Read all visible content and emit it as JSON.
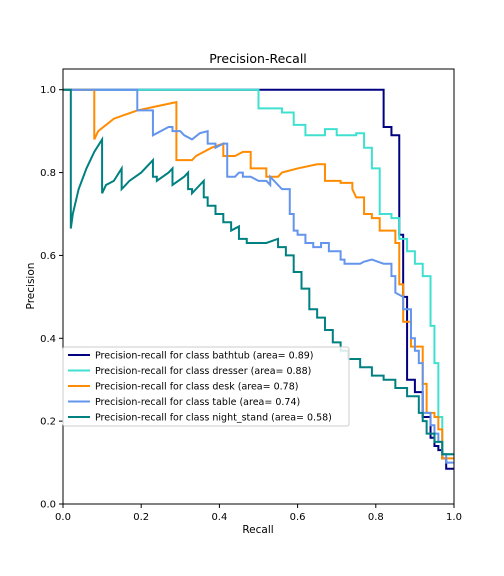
{
  "chart_data": {
    "type": "line",
    "title": "Precision-Recall",
    "xlabel": "Recall",
    "ylabel": "Precision",
    "xlim": [
      0,
      1
    ],
    "ylim": [
      0,
      1.05
    ],
    "xticks": [
      "0.0",
      "0.2",
      "0.4",
      "0.6",
      "0.8",
      "1.0"
    ],
    "yticks": [
      "0.0",
      "0.2",
      "0.4",
      "0.6",
      "0.8",
      "1.0"
    ],
    "grid": false,
    "legend": {
      "placement": "center-left"
    },
    "series": [
      {
        "name": "Precision-recall for class bathtub (area= 0.89)",
        "color": "#000080",
        "points": [
          [
            0.0,
            1.0
          ],
          [
            0.82,
            1.0
          ],
          [
            0.82,
            0.91
          ],
          [
            0.84,
            0.91
          ],
          [
            0.84,
            0.89
          ],
          [
            0.86,
            0.89
          ],
          [
            0.86,
            0.65
          ],
          [
            0.87,
            0.65
          ],
          [
            0.87,
            0.5
          ],
          [
            0.88,
            0.5
          ],
          [
            0.88,
            0.3
          ],
          [
            0.9,
            0.3
          ],
          [
            0.9,
            0.27
          ],
          [
            0.92,
            0.27
          ],
          [
            0.92,
            0.21
          ],
          [
            0.94,
            0.21
          ],
          [
            0.94,
            0.16
          ],
          [
            0.95,
            0.16
          ],
          [
            0.95,
            0.14
          ],
          [
            0.96,
            0.14
          ],
          [
            0.96,
            0.13
          ],
          [
            0.97,
            0.13
          ],
          [
            0.97,
            0.11
          ],
          [
            0.98,
            0.11
          ],
          [
            0.98,
            0.085
          ],
          [
            1.0,
            0.085
          ]
        ]
      },
      {
        "name": "Precision-recall for class dresser (area= 0.88)",
        "color": "#40e0d0",
        "points": [
          [
            0.0,
            1.0
          ],
          [
            0.5,
            1.0
          ],
          [
            0.5,
            0.955
          ],
          [
            0.56,
            0.955
          ],
          [
            0.56,
            0.945
          ],
          [
            0.59,
            0.945
          ],
          [
            0.59,
            0.915
          ],
          [
            0.62,
            0.915
          ],
          [
            0.62,
            0.89
          ],
          [
            0.67,
            0.89
          ],
          [
            0.67,
            0.905
          ],
          [
            0.7,
            0.905
          ],
          [
            0.7,
            0.89
          ],
          [
            0.75,
            0.89
          ],
          [
            0.75,
            0.895
          ],
          [
            0.77,
            0.895
          ],
          [
            0.77,
            0.86
          ],
          [
            0.79,
            0.86
          ],
          [
            0.79,
            0.81
          ],
          [
            0.81,
            0.81
          ],
          [
            0.81,
            0.7
          ],
          [
            0.84,
            0.7
          ],
          [
            0.84,
            0.69
          ],
          [
            0.86,
            0.69
          ],
          [
            0.86,
            0.64
          ],
          [
            0.88,
            0.64
          ],
          [
            0.88,
            0.61
          ],
          [
            0.9,
            0.61
          ],
          [
            0.9,
            0.58
          ],
          [
            0.92,
            0.58
          ],
          [
            0.92,
            0.55
          ],
          [
            0.94,
            0.55
          ],
          [
            0.94,
            0.43
          ],
          [
            0.95,
            0.43
          ],
          [
            0.95,
            0.34
          ],
          [
            0.96,
            0.34
          ],
          [
            0.96,
            0.21
          ],
          [
            0.97,
            0.21
          ],
          [
            0.97,
            0.12
          ],
          [
            1.0,
            0.12
          ]
        ]
      },
      {
        "name": "Precision-recall for class desk (area= 0.78)",
        "color": "#ff8c00",
        "points": [
          [
            0.0,
            1.0
          ],
          [
            0.08,
            1.0
          ],
          [
            0.08,
            0.88
          ],
          [
            0.09,
            0.9
          ],
          [
            0.13,
            0.93
          ],
          [
            0.19,
            0.95
          ],
          [
            0.24,
            0.96
          ],
          [
            0.29,
            0.97
          ],
          [
            0.29,
            0.83
          ],
          [
            0.33,
            0.83
          ],
          [
            0.34,
            0.84
          ],
          [
            0.36,
            0.85
          ],
          [
            0.38,
            0.86
          ],
          [
            0.38,
            0.86
          ],
          [
            0.41,
            0.87
          ],
          [
            0.41,
            0.84
          ],
          [
            0.44,
            0.84
          ],
          [
            0.46,
            0.85
          ],
          [
            0.48,
            0.85
          ],
          [
            0.48,
            0.81
          ],
          [
            0.52,
            0.81
          ],
          [
            0.52,
            0.79
          ],
          [
            0.55,
            0.79
          ],
          [
            0.56,
            0.8
          ],
          [
            0.6,
            0.81
          ],
          [
            0.65,
            0.82
          ],
          [
            0.67,
            0.82
          ],
          [
            0.67,
            0.78
          ],
          [
            0.71,
            0.78
          ],
          [
            0.71,
            0.775
          ],
          [
            0.74,
            0.775
          ],
          [
            0.74,
            0.76
          ],
          [
            0.74,
            0.76
          ],
          [
            0.75,
            0.74
          ],
          [
            0.77,
            0.74
          ],
          [
            0.77,
            0.7
          ],
          [
            0.79,
            0.7
          ],
          [
            0.79,
            0.69
          ],
          [
            0.81,
            0.69
          ],
          [
            0.81,
            0.66
          ],
          [
            0.85,
            0.66
          ],
          [
            0.85,
            0.63
          ],
          [
            0.86,
            0.63
          ],
          [
            0.86,
            0.53
          ],
          [
            0.87,
            0.53
          ],
          [
            0.87,
            0.44
          ],
          [
            0.89,
            0.44
          ],
          [
            0.89,
            0.38
          ],
          [
            0.92,
            0.38
          ],
          [
            0.92,
            0.29
          ],
          [
            0.93,
            0.29
          ],
          [
            0.93,
            0.22
          ],
          [
            0.95,
            0.22
          ],
          [
            0.95,
            0.21
          ],
          [
            0.96,
            0.21
          ],
          [
            0.96,
            0.18
          ],
          [
            0.97,
            0.18
          ],
          [
            0.97,
            0.11
          ],
          [
            1.0,
            0.11
          ]
        ]
      },
      {
        "name": "Precision-recall for class table (area= 0.74)",
        "color": "#6495ed",
        "points": [
          [
            0.0,
            1.0
          ],
          [
            0.19,
            1.0
          ],
          [
            0.19,
            0.95
          ],
          [
            0.23,
            0.95
          ],
          [
            0.23,
            0.89
          ],
          [
            0.27,
            0.91
          ],
          [
            0.28,
            0.91
          ],
          [
            0.28,
            0.9
          ],
          [
            0.3,
            0.9
          ],
          [
            0.31,
            0.89
          ],
          [
            0.31,
            0.89
          ],
          [
            0.33,
            0.88
          ],
          [
            0.35,
            0.895
          ],
          [
            0.37,
            0.9
          ],
          [
            0.37,
            0.87
          ],
          [
            0.39,
            0.87
          ],
          [
            0.39,
            0.86
          ],
          [
            0.41,
            0.87
          ],
          [
            0.42,
            0.87
          ],
          [
            0.42,
            0.79
          ],
          [
            0.44,
            0.79
          ],
          [
            0.45,
            0.8
          ],
          [
            0.46,
            0.8
          ],
          [
            0.46,
            0.79
          ],
          [
            0.48,
            0.79
          ],
          [
            0.5,
            0.78
          ],
          [
            0.52,
            0.78
          ],
          [
            0.53,
            0.77
          ],
          [
            0.53,
            0.79
          ],
          [
            0.56,
            0.76
          ],
          [
            0.58,
            0.76
          ],
          [
            0.58,
            0.7
          ],
          [
            0.59,
            0.7
          ],
          [
            0.59,
            0.66
          ],
          [
            0.6,
            0.66
          ],
          [
            0.6,
            0.65
          ],
          [
            0.62,
            0.65
          ],
          [
            0.62,
            0.63
          ],
          [
            0.64,
            0.63
          ],
          [
            0.64,
            0.62
          ],
          [
            0.66,
            0.62
          ],
          [
            0.66,
            0.63
          ],
          [
            0.68,
            0.63
          ],
          [
            0.68,
            0.61
          ],
          [
            0.71,
            0.61
          ],
          [
            0.71,
            0.59
          ],
          [
            0.72,
            0.59
          ],
          [
            0.72,
            0.58
          ],
          [
            0.76,
            0.58
          ],
          [
            0.77,
            0.585
          ],
          [
            0.79,
            0.59
          ],
          [
            0.82,
            0.58
          ],
          [
            0.84,
            0.58
          ],
          [
            0.84,
            0.55
          ],
          [
            0.85,
            0.55
          ],
          [
            0.85,
            0.51
          ],
          [
            0.87,
            0.5
          ],
          [
            0.87,
            0.47
          ],
          [
            0.89,
            0.47
          ],
          [
            0.89,
            0.4
          ],
          [
            0.9,
            0.4
          ],
          [
            0.9,
            0.37
          ],
          [
            0.91,
            0.37
          ],
          [
            0.91,
            0.34
          ],
          [
            0.92,
            0.34
          ],
          [
            0.92,
            0.22
          ],
          [
            0.94,
            0.22
          ],
          [
            0.94,
            0.19
          ],
          [
            0.95,
            0.19
          ],
          [
            0.95,
            0.17
          ],
          [
            0.96,
            0.17
          ],
          [
            0.96,
            0.15
          ],
          [
            0.97,
            0.15
          ],
          [
            0.97,
            0.12
          ],
          [
            0.98,
            0.12
          ],
          [
            0.98,
            0.1
          ],
          [
            1.0,
            0.1
          ]
        ]
      },
      {
        "name": "Precision-recall for class night_stand (area= 0.58)",
        "color": "#008080",
        "points": [
          [
            0.0,
            1.0
          ],
          [
            0.02,
            1.0
          ],
          [
            0.02,
            0.665
          ],
          [
            0.025,
            0.7
          ],
          [
            0.04,
            0.76
          ],
          [
            0.06,
            0.81
          ],
          [
            0.08,
            0.85
          ],
          [
            0.1,
            0.88
          ],
          [
            0.1,
            0.75
          ],
          [
            0.11,
            0.77
          ],
          [
            0.13,
            0.78
          ],
          [
            0.15,
            0.81
          ],
          [
            0.15,
            0.76
          ],
          [
            0.17,
            0.78
          ],
          [
            0.2,
            0.8
          ],
          [
            0.23,
            0.83
          ],
          [
            0.23,
            0.79
          ],
          [
            0.24,
            0.79
          ],
          [
            0.24,
            0.78
          ],
          [
            0.27,
            0.8
          ],
          [
            0.28,
            0.81
          ],
          [
            0.28,
            0.77
          ],
          [
            0.31,
            0.79
          ],
          [
            0.32,
            0.8
          ],
          [
            0.32,
            0.76
          ],
          [
            0.33,
            0.76
          ],
          [
            0.33,
            0.75
          ],
          [
            0.35,
            0.77
          ],
          [
            0.36,
            0.78
          ],
          [
            0.36,
            0.74
          ],
          [
            0.37,
            0.74
          ],
          [
            0.37,
            0.72
          ],
          [
            0.39,
            0.72
          ],
          [
            0.39,
            0.7
          ],
          [
            0.41,
            0.7
          ],
          [
            0.41,
            0.68
          ],
          [
            0.43,
            0.68
          ],
          [
            0.43,
            0.66
          ],
          [
            0.45,
            0.67
          ],
          [
            0.45,
            0.64
          ],
          [
            0.47,
            0.64
          ],
          [
            0.47,
            0.63
          ],
          [
            0.49,
            0.63
          ],
          [
            0.52,
            0.63
          ],
          [
            0.55,
            0.64
          ],
          [
            0.55,
            0.62
          ],
          [
            0.57,
            0.62
          ],
          [
            0.57,
            0.6
          ],
          [
            0.59,
            0.6
          ],
          [
            0.59,
            0.56
          ],
          [
            0.61,
            0.56
          ],
          [
            0.61,
            0.52
          ],
          [
            0.63,
            0.52
          ],
          [
            0.63,
            0.47
          ],
          [
            0.65,
            0.47
          ],
          [
            0.65,
            0.45
          ],
          [
            0.67,
            0.45
          ],
          [
            0.67,
            0.42
          ],
          [
            0.69,
            0.42
          ],
          [
            0.69,
            0.39
          ],
          [
            0.71,
            0.39
          ],
          [
            0.71,
            0.37
          ],
          [
            0.73,
            0.37
          ],
          [
            0.73,
            0.35
          ],
          [
            0.76,
            0.35
          ],
          [
            0.76,
            0.33
          ],
          [
            0.79,
            0.33
          ],
          [
            0.79,
            0.31
          ],
          [
            0.82,
            0.31
          ],
          [
            0.82,
            0.3
          ],
          [
            0.85,
            0.3
          ],
          [
            0.85,
            0.28
          ],
          [
            0.88,
            0.28
          ],
          [
            0.88,
            0.26
          ],
          [
            0.91,
            0.26
          ],
          [
            0.91,
            0.22
          ],
          [
            0.92,
            0.22
          ],
          [
            0.92,
            0.2
          ],
          [
            0.93,
            0.2
          ],
          [
            0.93,
            0.17
          ],
          [
            0.95,
            0.17
          ],
          [
            0.95,
            0.15
          ],
          [
            0.97,
            0.15
          ],
          [
            0.97,
            0.12
          ],
          [
            1.0,
            0.12
          ]
        ]
      }
    ]
  }
}
